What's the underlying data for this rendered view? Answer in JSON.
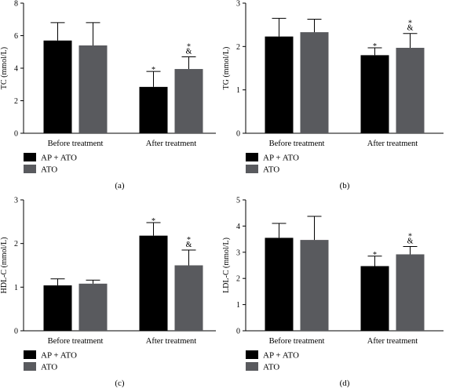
{
  "colors": {
    "series_0": "#000000",
    "series_1": "#595a5e",
    "axis": "#000000",
    "background": "#ffffff"
  },
  "chart_data": [
    {
      "panel": "(a)",
      "type": "bar",
      "ylabel": "TC (mmol/L)",
      "categories": [
        "Before treatment",
        "After treatment"
      ],
      "ylim": [
        0,
        8
      ],
      "yticks": [
        0,
        2,
        4,
        6,
        8
      ],
      "series": [
        {
          "name": "AP + ATO",
          "values": [
            5.7,
            2.85
          ],
          "errors": [
            1.1,
            0.95
          ]
        },
        {
          "name": "ATO",
          "values": [
            5.4,
            3.95
          ],
          "errors": [
            1.4,
            0.75
          ]
        }
      ],
      "annotations": [
        {
          "series": 0,
          "category": 1,
          "marks": [
            "*"
          ]
        },
        {
          "series": 1,
          "category": 1,
          "marks": [
            "&",
            "*"
          ]
        }
      ],
      "legend": "bottom-left",
      "grid": false
    },
    {
      "panel": "(b)",
      "type": "bar",
      "ylabel": "TG (mmol/L)",
      "categories": [
        "Before treatment",
        "After treatment"
      ],
      "ylim": [
        0,
        3
      ],
      "yticks": [
        0,
        1,
        2,
        3
      ],
      "series": [
        {
          "name": "AP + ATO",
          "values": [
            2.23,
            1.8
          ],
          "errors": [
            0.42,
            0.17
          ]
        },
        {
          "name": "ATO",
          "values": [
            2.33,
            1.97
          ],
          "errors": [
            0.3,
            0.33
          ]
        }
      ],
      "annotations": [
        {
          "series": 0,
          "category": 1,
          "marks": [
            "*"
          ]
        },
        {
          "series": 1,
          "category": 1,
          "marks": [
            "&",
            "*"
          ]
        }
      ],
      "legend": "bottom-left",
      "grid": false
    },
    {
      "panel": "(c)",
      "type": "bar",
      "ylabel": "HDL-C (mmol/L)",
      "categories": [
        "Before treatment",
        "After treatment"
      ],
      "ylim": [
        0,
        3
      ],
      "yticks": [
        0,
        1,
        2,
        3
      ],
      "series": [
        {
          "name": "AP + ATO",
          "values": [
            1.04,
            2.18
          ],
          "errors": [
            0.15,
            0.3
          ]
        },
        {
          "name": "ATO",
          "values": [
            1.08,
            1.5
          ],
          "errors": [
            0.08,
            0.35
          ]
        }
      ],
      "annotations": [
        {
          "series": 0,
          "category": 1,
          "marks": [
            "*"
          ]
        },
        {
          "series": 1,
          "category": 1,
          "marks": [
            "&",
            "*"
          ]
        }
      ],
      "legend": "bottom-left",
      "grid": false
    },
    {
      "panel": "(d)",
      "type": "bar",
      "ylabel": "LDL-C (mmol/L)",
      "categories": [
        "Before treatment",
        "After treatment"
      ],
      "ylim": [
        0,
        5
      ],
      "yticks": [
        0,
        1,
        2,
        3,
        4,
        5
      ],
      "series": [
        {
          "name": "AP + ATO",
          "values": [
            3.55,
            2.47
          ],
          "errors": [
            0.55,
            0.38
          ]
        },
        {
          "name": "ATO",
          "values": [
            3.47,
            2.92
          ],
          "errors": [
            0.9,
            0.3
          ]
        }
      ],
      "annotations": [
        {
          "series": 0,
          "category": 1,
          "marks": [
            "*"
          ]
        },
        {
          "series": 1,
          "category": 1,
          "marks": [
            "&",
            "*"
          ]
        }
      ],
      "legend": "bottom-left",
      "grid": false
    }
  ]
}
